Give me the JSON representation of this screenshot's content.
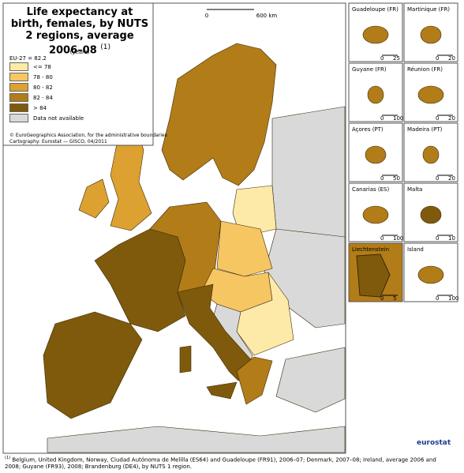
{
  "header": {
    "title": "Life expectancy at birth, females, by NUTS 2 regions, average 2006–08",
    "title_note": "(1)"
  },
  "scale_bar": {
    "start": "0",
    "end": "600 km"
  },
  "legend": {
    "unit": "(years)",
    "reference": "EU-27 = 82.2",
    "items": [
      {
        "label": "<= 78",
        "color": "#fdeaa9"
      },
      {
        "label": "78 - 80",
        "color": "#f6c663"
      },
      {
        "label": "80 - 82",
        "color": "#dca131"
      },
      {
        "label": "82 - 84",
        "color": "#b27c18"
      },
      {
        "label": "> 84",
        "color": "#7f5a0c"
      },
      {
        "label": "Data not available",
        "color": "#d9d9d9"
      }
    ]
  },
  "credits": [
    "© EuroGeographics Association, for the administrative boundaries",
    "Cartography: Eurostat — GISCO, 04/2011"
  ],
  "insets": [
    {
      "name": "Guadeloupe (FR)",
      "scale": [
        "0",
        "25"
      ]
    },
    {
      "name": "Martinique (FR)",
      "scale": [
        "0",
        "20"
      ]
    },
    {
      "name": "Guyane (FR)",
      "scale": [
        "0",
        "100"
      ]
    },
    {
      "name": "Réunion (FR)",
      "scale": [
        "0",
        "20"
      ]
    },
    {
      "name": "Açores (PT)",
      "scale": [
        "0",
        "50"
      ]
    },
    {
      "name": "Madeira (PT)",
      "scale": [
        "0",
        "20"
      ]
    },
    {
      "name": "Canarias (ES)",
      "scale": [
        "0",
        "100"
      ]
    },
    {
      "name": "Malta",
      "scale": [
        "0",
        "10"
      ]
    },
    {
      "name": "Liechtenstein",
      "scale": [
        "0",
        "5"
      ]
    },
    {
      "name": "Island",
      "scale": [
        "0",
        "100"
      ]
    }
  ],
  "footnote": {
    "marker": "(1)",
    "text": "Belgium, United Kingdom, Norway, Ciudad Autónoma de Melilla (ES64) and Guadeloupe (FR91), 2006–07; Denmark, 2007–08; Ireland, average 2006 and 2008; Guyane (FR93), 2008; Brandenburg (DE4), by NUTS 1 region."
  },
  "logo": "eurostat"
}
